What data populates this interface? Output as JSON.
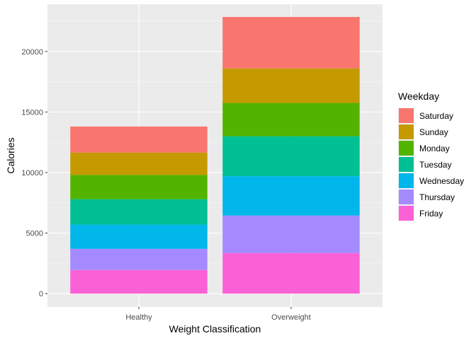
{
  "chart_data": {
    "type": "bar",
    "stacked": true,
    "categories": [
      "Healthy",
      "Overweight"
    ],
    "xlabel": "Weight Classification",
    "ylabel": "Calories",
    "ylim": [
      -1100,
      23900
    ],
    "yticks": [
      0,
      5000,
      10000,
      15000,
      20000
    ],
    "ytick_labels": [
      "0",
      "5000",
      "10000",
      "15000",
      "20000"
    ],
    "grid": true,
    "legend": {
      "title": "Weekday",
      "position": "right"
    },
    "stack_order_bottom_to_top": [
      "Friday",
      "Thursday",
      "Wednesday",
      "Tuesday",
      "Monday",
      "Sunday",
      "Saturday"
    ],
    "series": [
      {
        "name": "Saturday",
        "color": "#F8766D",
        "values": [
          2150,
          4250
        ]
      },
      {
        "name": "Sunday",
        "color": "#C49A00",
        "values": [
          1850,
          2850
        ]
      },
      {
        "name": "Monday",
        "color": "#53B400",
        "values": [
          2000,
          2750
        ]
      },
      {
        "name": "Tuesday",
        "color": "#00C094",
        "values": [
          2100,
          3300
        ]
      },
      {
        "name": "Wednesday",
        "color": "#00B6EB",
        "values": [
          2000,
          3250
        ]
      },
      {
        "name": "Thursday",
        "color": "#A58AFF",
        "values": [
          1750,
          3100
        ]
      },
      {
        "name": "Friday",
        "color": "#FB61D7",
        "values": [
          1950,
          3350
        ]
      }
    ]
  }
}
